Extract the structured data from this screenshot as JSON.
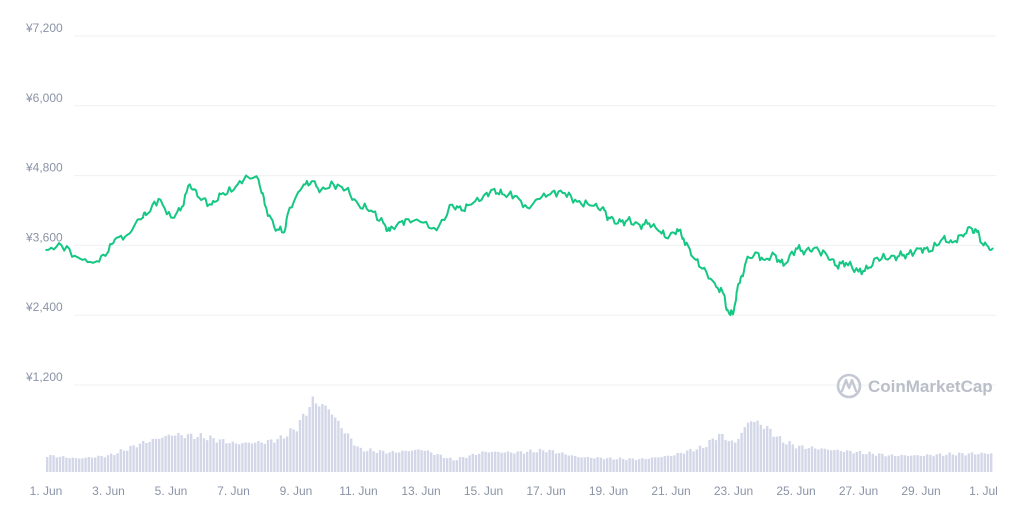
{
  "watermark": {
    "text": "CoinMarketCap"
  },
  "colors": {
    "price_line": "#16c784",
    "volume_bar": "#d3d7e8",
    "volume_bar_edge": "#c0c5dc",
    "grid": "#eef0f3",
    "tick_text": "#8a93a6"
  },
  "chart_data": {
    "type": "line",
    "title": "",
    "xlabel": "",
    "ylabel": "",
    "currency_prefix": "¥",
    "yticks": [
      1200,
      2400,
      3600,
      4800,
      6000,
      7200
    ],
    "ytick_labels": [
      "¥1,200",
      "¥2,400",
      "¥3,600",
      "¥4,800",
      "¥6,000",
      "¥7,200"
    ],
    "ylim": [
      960,
      7440
    ],
    "xticks": [
      "1. Jun",
      "3. Jun",
      "5. Jun",
      "7. Jun",
      "9. Jun",
      "11. Jun",
      "13. Jun",
      "15. Jun",
      "17. Jun",
      "19. Jun",
      "21. Jun",
      "23. Jun",
      "25. Jun",
      "27. Jun",
      "29. Jun",
      "1. Jul"
    ],
    "grid": true,
    "legend": "none",
    "series": [
      {
        "kind": "price",
        "x": [
          1,
          1.5,
          2,
          2.5,
          2.9,
          3.2,
          3.6,
          4.0,
          4.2,
          4.6,
          5.0,
          5.3,
          5.6,
          5.9,
          6.3,
          6.6,
          7.0,
          7.4,
          7.8,
          8.0,
          8.3,
          8.6,
          8.8,
          9.2,
          9.5,
          9.8,
          10.2,
          10.6,
          11.0,
          11.4,
          11.8,
          12.0,
          12.3,
          12.6,
          13.0,
          13.5,
          14.0,
          14.3,
          14.6,
          15.0,
          15.3,
          15.6,
          16.0,
          16.4,
          16.8,
          17.2,
          17.6,
          18.0,
          18.4,
          18.8,
          19.0,
          19.3,
          19.6,
          20.0,
          20.3,
          20.6,
          20.9,
          21.2,
          21.4,
          21.7,
          22.0,
          22.4,
          22.7,
          22.8,
          22.9,
          23.0,
          23.1,
          23.2,
          23.4,
          23.7,
          24.0,
          24.3,
          24.6,
          25.0,
          25.3,
          25.6,
          26.0,
          26.3,
          26.6,
          27.0,
          27.3,
          27.6,
          28.0,
          28.3,
          28.6,
          29.0,
          29.3,
          29.7,
          30.0,
          30.3,
          30.6,
          30.8,
          31.0,
          31.3
        ],
        "values": [
          3520,
          3600,
          3400,
          3300,
          3420,
          3700,
          3780,
          4050,
          4120,
          4400,
          4080,
          4200,
          4650,
          4420,
          4300,
          4480,
          4550,
          4800,
          4730,
          4300,
          3920,
          3820,
          4250,
          4600,
          4700,
          4550,
          4650,
          4560,
          4300,
          4200,
          3980,
          3850,
          4000,
          4050,
          4000,
          3860,
          4300,
          4200,
          4300,
          4450,
          4560,
          4480,
          4450,
          4250,
          4400,
          4520,
          4500,
          4350,
          4290,
          4250,
          4080,
          3980,
          4030,
          3950,
          3980,
          3850,
          3720,
          3880,
          3720,
          3400,
          3200,
          2950,
          2750,
          2500,
          2400,
          2450,
          2800,
          2950,
          3320,
          3480,
          3350,
          3450,
          3250,
          3550,
          3500,
          3560,
          3420,
          3250,
          3300,
          3150,
          3200,
          3390,
          3380,
          3420,
          3450,
          3550,
          3500,
          3720,
          3650,
          3780,
          3900,
          3830,
          3600,
          3550
        ]
      },
      {
        "kind": "volume",
        "x": [
          1,
          2,
          3,
          4,
          5,
          6,
          7,
          8,
          8.5,
          9,
          9.5,
          10,
          10.5,
          11,
          12,
          13,
          14,
          15,
          16,
          17,
          18,
          19,
          20,
          21,
          21.5,
          22,
          22.5,
          23,
          23.5,
          24,
          24.5,
          25,
          26,
          27,
          28,
          29,
          30,
          31.3
        ],
        "values": [
          0.22,
          0.18,
          0.22,
          0.38,
          0.5,
          0.47,
          0.38,
          0.4,
          0.45,
          0.6,
          0.95,
          0.85,
          0.55,
          0.3,
          0.26,
          0.3,
          0.16,
          0.27,
          0.26,
          0.29,
          0.2,
          0.18,
          0.17,
          0.22,
          0.28,
          0.33,
          0.5,
          0.38,
          0.7,
          0.6,
          0.42,
          0.34,
          0.3,
          0.26,
          0.22,
          0.22,
          0.24,
          0.25
        ]
      }
    ]
  }
}
